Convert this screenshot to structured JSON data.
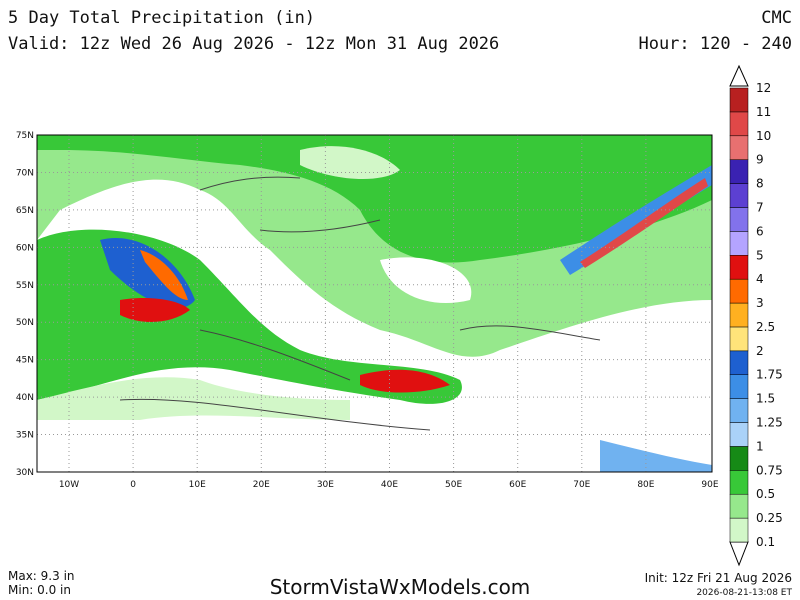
{
  "header": {
    "title": "5 Day Total Precipitation (in)",
    "valid": "Valid: 12z Wed 26 Aug 2026 - 12z Mon 31 Aug 2026",
    "model": "CMC",
    "hour": "Hour: 120 - 240"
  },
  "map": {
    "lat_labels": [
      "75N",
      "70N",
      "65N",
      "60N",
      "55N",
      "50N",
      "45N",
      "40N",
      "35N",
      "30N"
    ],
    "lon_labels": [
      "10W",
      "0",
      "10E",
      "20E",
      "30E",
      "40E",
      "50E",
      "60E",
      "70E",
      "80E",
      "90E"
    ]
  },
  "colorbar": {
    "levels": [
      0.1,
      0.25,
      0.5,
      0.75,
      1,
      1.25,
      1.5,
      1.75,
      2,
      2.5,
      3,
      4,
      5,
      6,
      7,
      8,
      9,
      10,
      11,
      12
    ],
    "colors": [
      "#d2f7c8",
      "#96e88c",
      "#38c838",
      "#168a16",
      "#aad2f8",
      "#70b2f0",
      "#3c8ee6",
      "#1e60d0",
      "#ffe47a",
      "#ffb020",
      "#ff6a00",
      "#e01010",
      "#b4a4ff",
      "#8272ec",
      "#5c40d2",
      "#3a22b2",
      "#e87070",
      "#e04848",
      "#b82020"
    ]
  },
  "footer": {
    "max": "Max: 9.3 in",
    "min": "Min: 0.0 in",
    "site": "StormVistaWxModels.com",
    "init": "Init: 12z Fri 21 Aug 2026",
    "timestamp": "2026-08-21-13:08 ET"
  }
}
